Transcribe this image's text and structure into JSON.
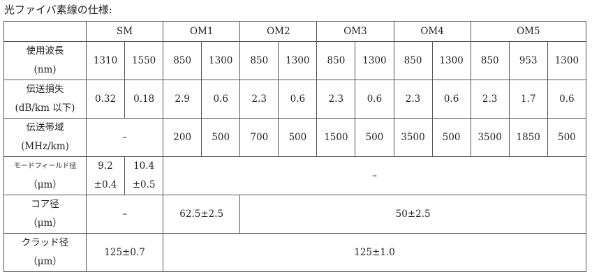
{
  "title": "光ファイバ素線の仕様:",
  "table": {
    "header": [
      "SM",
      "OM1",
      "OM2",
      "OM3",
      "OM4",
      "OM5"
    ],
    "rows": [
      {
        "label": [
          "使用波長",
          "(nm)"
        ],
        "cells": [
          1310,
          1550,
          850,
          1300,
          850,
          1300,
          850,
          1300,
          850,
          1300,
          850,
          953,
          1300
        ]
      },
      {
        "label": [
          "伝送損失",
          "(dB/km 以下)"
        ],
        "cells": [
          0.32,
          0.18,
          2.9,
          0.6,
          2.3,
          0.6,
          2.3,
          0.6,
          2.3,
          0.6,
          2.3,
          1.7,
          0.6
        ]
      },
      {
        "label": [
          "伝送帯域",
          "(MHz/km)"
        ],
        "cells": [
          "–",
          200,
          500,
          700,
          500,
          1500,
          500,
          3500,
          500,
          3500,
          1850,
          500
        ]
      },
      {
        "label": [
          "モードフィールド径",
          "（μm）"
        ],
        "cells": [
          [
            "9.2",
            "±0.4"
          ],
          [
            "10.4",
            "±0.5"
          ],
          "–"
        ]
      },
      {
        "label": [
          "コア径",
          "（μm）"
        ],
        "cells": [
          "–",
          "62.5±2.5",
          "50±2.5"
        ]
      },
      {
        "label": [
          "クラッド径",
          "（μm）"
        ],
        "cells": [
          "125±0.7",
          "125±1.0"
        ]
      }
    ]
  }
}
